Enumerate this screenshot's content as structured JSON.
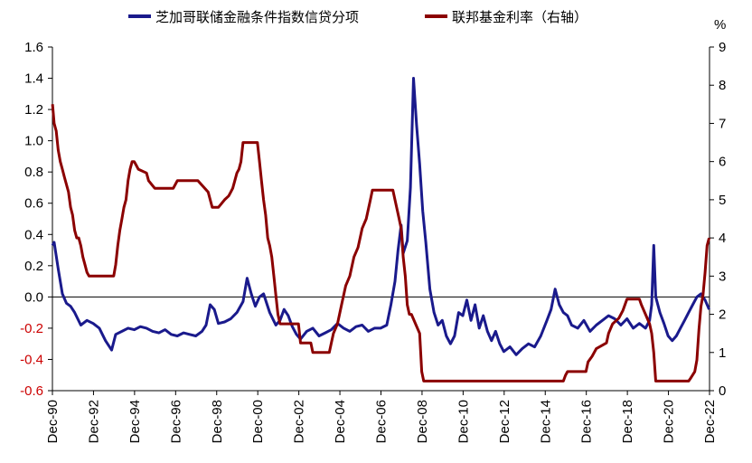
{
  "chart_data": {
    "type": "line",
    "legend": {
      "position": "top",
      "items": [
        {
          "label": "芝加哥联储金融条件指数信贷分项",
          "color": "#1a1a8c"
        },
        {
          "label": "联邦基金利率（右轴）",
          "color": "#8b0000"
        }
      ]
    },
    "right_axis_unit": "%",
    "left_axis": {
      "range": [
        -0.6,
        1.6
      ],
      "ticks": [
        "1.6",
        "1.4",
        "1.2",
        "1.0",
        "0.8",
        "0.6",
        "0.4",
        "0.2",
        "0.0",
        "-0.2",
        "-0.4",
        "-0.6"
      ],
      "negative_tick_color": "#cc0000"
    },
    "right_axis": {
      "range": [
        0,
        9
      ],
      "ticks": [
        "9",
        "8",
        "7",
        "6",
        "5",
        "4",
        "3",
        "2",
        "1",
        "0"
      ]
    },
    "x_axis": {
      "range": [
        1990.917,
        2022.917
      ],
      "ticks": [
        "Dec-90",
        "Dec-92",
        "Dec-94",
        "Dec-96",
        "Dec-98",
        "Dec-00",
        "Dec-02",
        "Dec-04",
        "Dec-06",
        "Dec-08",
        "Dec-10",
        "Dec-12",
        "Dec-14",
        "Dec-16",
        "Dec-18",
        "Dec-20",
        "Dec-22"
      ]
    },
    "series": [
      {
        "name": "芝加哥联储金融条件指数信贷分项",
        "axis": "left",
        "color": "#1a1a8c",
        "x": [
          1990.92,
          1991.0,
          1991.2,
          1991.4,
          1991.6,
          1991.8,
          1992.0,
          1992.3,
          1992.6,
          1992.9,
          1993.2,
          1993.5,
          1993.8,
          1994.0,
          1994.3,
          1994.6,
          1994.9,
          1995.2,
          1995.5,
          1995.8,
          1996.1,
          1996.4,
          1996.7,
          1997.0,
          1997.3,
          1997.6,
          1997.9,
          1998.2,
          1998.4,
          1998.6,
          1998.8,
          1999.0,
          1999.3,
          1999.6,
          1999.9,
          2000.2,
          2000.4,
          2000.6,
          2000.8,
          2001.0,
          2001.2,
          2001.5,
          2001.8,
          2002.0,
          2002.2,
          2002.4,
          2002.6,
          2002.8,
          2003.0,
          2003.3,
          2003.6,
          2003.9,
          2004.2,
          2004.5,
          2004.8,
          2005.1,
          2005.4,
          2005.7,
          2006.0,
          2006.3,
          2006.6,
          2006.9,
          2007.2,
          2007.4,
          2007.6,
          2007.75,
          2007.9,
          2008.0,
          2008.2,
          2008.35,
          2008.5,
          2008.65,
          2008.8,
          2008.95,
          2009.1,
          2009.3,
          2009.5,
          2009.7,
          2009.9,
          2010.1,
          2010.3,
          2010.5,
          2010.7,
          2010.9,
          2011.1,
          2011.3,
          2011.5,
          2011.7,
          2011.9,
          2012.1,
          2012.3,
          2012.5,
          2012.7,
          2012.9,
          2013.2,
          2013.5,
          2013.8,
          2014.1,
          2014.4,
          2014.7,
          2015.0,
          2015.2,
          2015.4,
          2015.6,
          2015.8,
          2016.0,
          2016.2,
          2016.5,
          2016.8,
          2017.1,
          2017.4,
          2017.7,
          2018.0,
          2018.3,
          2018.6,
          2018.9,
          2019.2,
          2019.5,
          2019.8,
          2020.0,
          2020.1,
          2020.2,
          2020.3,
          2020.5,
          2020.7,
          2020.9,
          2021.1,
          2021.3,
          2021.5,
          2021.7,
          2021.9,
          2022.1,
          2022.3,
          2022.5,
          2022.7,
          2022.9
        ],
        "values": [
          0.33,
          0.35,
          0.18,
          0.02,
          -0.04,
          -0.06,
          -0.1,
          -0.18,
          -0.15,
          -0.17,
          -0.2,
          -0.28,
          -0.34,
          -0.24,
          -0.22,
          -0.2,
          -0.21,
          -0.19,
          -0.2,
          -0.22,
          -0.23,
          -0.21,
          -0.24,
          -0.25,
          -0.23,
          -0.24,
          -0.25,
          -0.22,
          -0.18,
          -0.05,
          -0.08,
          -0.17,
          -0.16,
          -0.14,
          -0.1,
          -0.03,
          0.12,
          0.02,
          -0.06,
          0.0,
          0.02,
          -0.1,
          -0.18,
          -0.15,
          -0.08,
          -0.12,
          -0.19,
          -0.24,
          -0.27,
          -0.22,
          -0.2,
          -0.25,
          -0.23,
          -0.21,
          -0.17,
          -0.2,
          -0.22,
          -0.19,
          -0.18,
          -0.22,
          -0.2,
          -0.2,
          -0.18,
          -0.05,
          0.1,
          0.3,
          0.46,
          0.28,
          0.36,
          0.7,
          1.4,
          1.1,
          0.85,
          0.55,
          0.35,
          0.05,
          -0.1,
          -0.18,
          -0.15,
          -0.25,
          -0.3,
          -0.25,
          -0.1,
          -0.12,
          -0.02,
          -0.15,
          -0.05,
          -0.2,
          -0.12,
          -0.22,
          -0.28,
          -0.22,
          -0.3,
          -0.35,
          -0.32,
          -0.37,
          -0.33,
          -0.3,
          -0.32,
          -0.25,
          -0.15,
          -0.08,
          0.05,
          -0.05,
          -0.1,
          -0.12,
          -0.18,
          -0.2,
          -0.15,
          -0.22,
          -0.18,
          -0.15,
          -0.12,
          -0.14,
          -0.18,
          -0.14,
          -0.2,
          -0.17,
          -0.2,
          -0.15,
          -0.05,
          0.33,
          0.0,
          -0.1,
          -0.17,
          -0.25,
          -0.28,
          -0.25,
          -0.2,
          -0.15,
          -0.1,
          -0.05,
          0.0,
          0.02,
          -0.02,
          -0.08
        ]
      },
      {
        "name": "联邦基金利率（右轴）",
        "axis": "right",
        "color": "#8b0000",
        "x": [
          1990.92,
          1991.0,
          1991.1,
          1991.2,
          1991.3,
          1991.4,
          1991.5,
          1991.6,
          1991.7,
          1991.8,
          1991.9,
          1992.0,
          1992.1,
          1992.2,
          1992.3,
          1992.4,
          1992.5,
          1992.6,
          1992.7,
          1992.8,
          1992.9,
          1993.0,
          1993.5,
          1993.9,
          1994.0,
          1994.1,
          1994.2,
          1994.3,
          1994.4,
          1994.5,
          1994.6,
          1994.7,
          1994.8,
          1994.9,
          1995.0,
          1995.1,
          1995.5,
          1995.6,
          1995.9,
          1996.0,
          1996.2,
          1996.5,
          1996.8,
          1997.0,
          1997.2,
          1997.4,
          1997.8,
          1998.0,
          1998.5,
          1998.7,
          1998.8,
          1998.9,
          1999.0,
          1999.3,
          1999.5,
          1999.6,
          1999.7,
          1999.8,
          1999.9,
          2000.0,
          2000.1,
          2000.2,
          2000.4,
          2000.9,
          2001.0,
          2001.1,
          2001.2,
          2001.3,
          2001.4,
          2001.5,
          2001.6,
          2001.7,
          2001.8,
          2001.9,
          2002.0,
          2002.9,
          2003.0,
          2003.5,
          2003.6,
          2004.4,
          2004.5,
          2004.6,
          2004.8,
          2005.0,
          2005.2,
          2005.4,
          2005.6,
          2005.8,
          2006.0,
          2006.2,
          2006.4,
          2006.5,
          2007.5,
          2007.6,
          2007.7,
          2007.8,
          2007.9,
          2008.0,
          2008.1,
          2008.2,
          2008.3,
          2008.4,
          2008.8,
          2008.9,
          2009.0,
          2015.8,
          2015.9,
          2016.0,
          2016.9,
          2017.0,
          2017.2,
          2017.4,
          2017.9,
          2018.0,
          2018.2,
          2018.5,
          2018.7,
          2018.9,
          2019.5,
          2019.6,
          2019.8,
          2020.0,
          2020.1,
          2020.2,
          2020.3,
          2021.9,
          2022.0,
          2022.2,
          2022.3,
          2022.4,
          2022.5,
          2022.6,
          2022.7,
          2022.8,
          2022.9
        ],
        "values": [
          7.5,
          7.0,
          6.8,
          6.3,
          6.0,
          5.8,
          5.6,
          5.4,
          5.2,
          4.8,
          4.6,
          4.2,
          4.0,
          4.0,
          3.8,
          3.5,
          3.3,
          3.1,
          3.0,
          3.0,
          3.0,
          3.0,
          3.0,
          3.0,
          3.3,
          3.8,
          4.2,
          4.5,
          4.8,
          5.0,
          5.5,
          5.8,
          6.0,
          6.0,
          5.9,
          5.8,
          5.7,
          5.5,
          5.3,
          5.3,
          5.3,
          5.3,
          5.3,
          5.5,
          5.5,
          5.5,
          5.5,
          5.5,
          5.2,
          4.8,
          4.8,
          4.8,
          4.8,
          5.0,
          5.1,
          5.2,
          5.3,
          5.5,
          5.7,
          5.8,
          6.0,
          6.5,
          6.5,
          6.5,
          6.0,
          5.5,
          5.0,
          4.6,
          4.0,
          3.8,
          3.5,
          3.0,
          2.5,
          2.0,
          1.75,
          1.75,
          1.25,
          1.25,
          1.0,
          1.0,
          1.25,
          1.5,
          1.75,
          2.25,
          2.75,
          3.0,
          3.5,
          3.75,
          4.25,
          4.5,
          5.0,
          5.25,
          5.25,
          5.0,
          4.75,
          4.5,
          4.25,
          3.5,
          3.0,
          2.25,
          2.0,
          2.0,
          1.5,
          0.5,
          0.25,
          0.25,
          0.4,
          0.5,
          0.5,
          0.75,
          0.9,
          1.1,
          1.25,
          1.5,
          1.75,
          1.9,
          2.1,
          2.4,
          2.4,
          2.25,
          2.0,
          1.75,
          1.5,
          1.0,
          0.25,
          0.25,
          0.33,
          0.5,
          0.8,
          1.6,
          2.2,
          2.5,
          3.1,
          3.8,
          4.0
        ]
      }
    ]
  }
}
